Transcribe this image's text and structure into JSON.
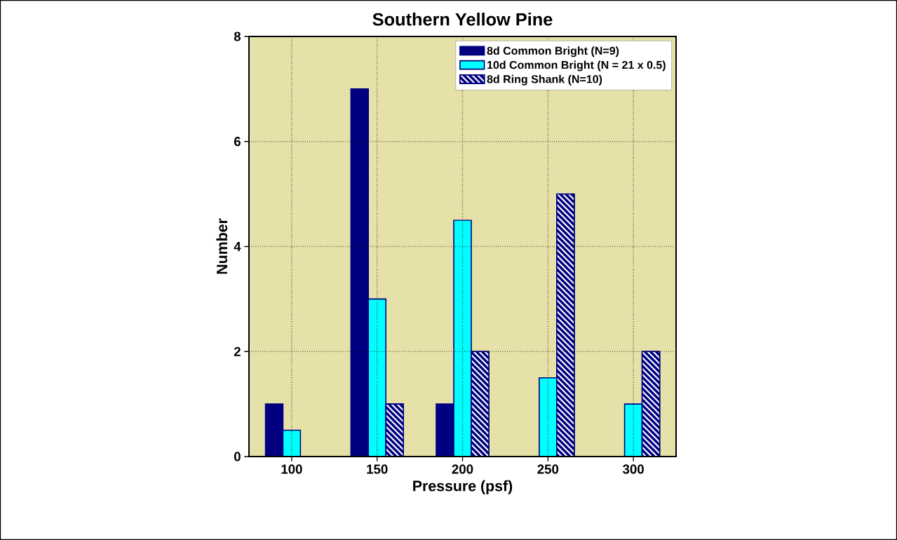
{
  "chart_data": {
    "type": "bar",
    "title": "Southern Yellow Pine",
    "xlabel": "Pressure (psf)",
    "ylabel": "Number",
    "categories": [
      "100",
      "150",
      "200",
      "250",
      "300"
    ],
    "series": [
      {
        "name": "8d  Common Bright (N=9)",
        "color": "#000080",
        "values": [
          1,
          7,
          1,
          null,
          null
        ]
      },
      {
        "name": "10d Common Bright (N = 21 x 0.5)",
        "color": "#00ffff",
        "values": [
          0.5,
          3,
          4.5,
          1.5,
          1
        ]
      },
      {
        "name": "8d   Ring Shank (N=10)",
        "color": "#000080",
        "values": [
          null,
          1,
          2,
          5,
          2
        ]
      }
    ],
    "ylim": [
      0,
      8
    ],
    "yticks": [
      0,
      2,
      4,
      6,
      8
    ],
    "grid": true,
    "legend": "top right"
  }
}
